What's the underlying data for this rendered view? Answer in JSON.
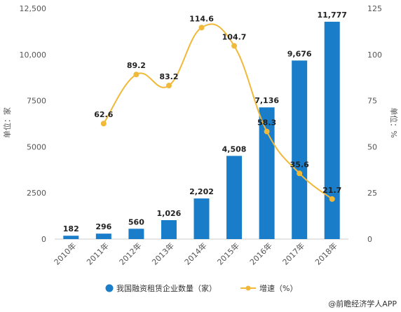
{
  "chart_data": {
    "type": "bar",
    "categories": [
      "2010年",
      "2011年",
      "2012年",
      "2013年",
      "2014年",
      "2015年",
      "2016年",
      "2017年",
      "2018年"
    ],
    "series": [
      {
        "name": "我国融资租赁企业数量（家）",
        "type": "bar",
        "axis": "left",
        "color": "#1a7dc9",
        "values": [
          182,
          296,
          560,
          1026,
          2202,
          4508,
          7136,
          9676,
          11777
        ],
        "labels": [
          "182",
          "296",
          "560",
          "1,026",
          "2,202",
          "4,508",
          "7,136",
          "9,676",
          "11,777"
        ]
      },
      {
        "name": "增速（%）",
        "type": "line",
        "axis": "right",
        "color": "#f0b93a",
        "values": [
          null,
          62.6,
          89.2,
          83.2,
          114.6,
          104.7,
          58.3,
          35.6,
          21.7
        ],
        "labels": [
          null,
          "62.6",
          "89.2",
          "83.2",
          "114.6",
          "104.7",
          "58.3",
          "35.6",
          "21.7"
        ]
      }
    ],
    "ylabel_left": "单位：家",
    "ylabel_right": "单位：%",
    "ylim_left": [
      0,
      12500
    ],
    "ylim_right": [
      0,
      125
    ],
    "yticks_left": [
      0,
      2500,
      5000,
      7500,
      10000,
      12500
    ],
    "yticks_left_labels": [
      "0",
      "2500",
      "5000",
      "7500",
      "10,000",
      "12,500"
    ],
    "yticks_right": [
      0,
      25,
      50,
      75,
      100,
      125
    ],
    "yticks_right_labels": [
      "0",
      "25",
      "50",
      "75",
      "100",
      "125"
    ],
    "grid": false,
    "legend_position": "bottom"
  },
  "source": "@前瞻经济学人APP"
}
